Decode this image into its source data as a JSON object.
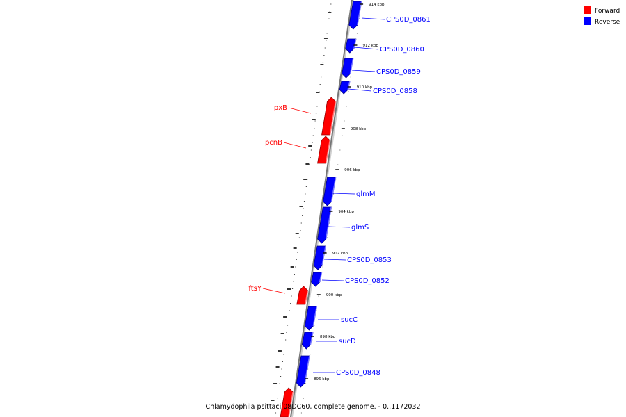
{
  "legend": [
    {
      "label": "Forward",
      "color": "#ff0000"
    },
    {
      "label": "Reverse",
      "color": "#0000ff"
    }
  ],
  "caption": "Chlamydophila psittaci 08DC60, complete genome. - 0..1172032",
  "kbp_ticks": [
    "914 kbp",
    "912 kbp",
    "910 kbp",
    "908 kbp",
    "906 kbp",
    "904 kbp",
    "902 kbp",
    "900 kbp",
    "898 kbp",
    "896 kbp"
  ],
  "genes": [
    {
      "name": "CPS0D_0861",
      "strand": "reverse"
    },
    {
      "name": "CPS0D_0860",
      "strand": "reverse"
    },
    {
      "name": "CPS0D_0859",
      "strand": "reverse"
    },
    {
      "name": "CPS0D_0858",
      "strand": "reverse"
    },
    {
      "name": "lpxB",
      "strand": "forward"
    },
    {
      "name": "pcnB",
      "strand": "forward"
    },
    {
      "name": "glmM",
      "strand": "reverse"
    },
    {
      "name": "glmS",
      "strand": "reverse"
    },
    {
      "name": "CPS0D_0853",
      "strand": "reverse"
    },
    {
      "name": "CPS0D_0852",
      "strand": "reverse"
    },
    {
      "name": "ftsY",
      "strand": "forward"
    },
    {
      "name": "sucC",
      "strand": "reverse"
    },
    {
      "name": "sucD",
      "strand": "reverse"
    },
    {
      "name": "CPS0D_0848",
      "strand": "reverse"
    },
    {
      "name": "",
      "strand": "forward"
    }
  ]
}
